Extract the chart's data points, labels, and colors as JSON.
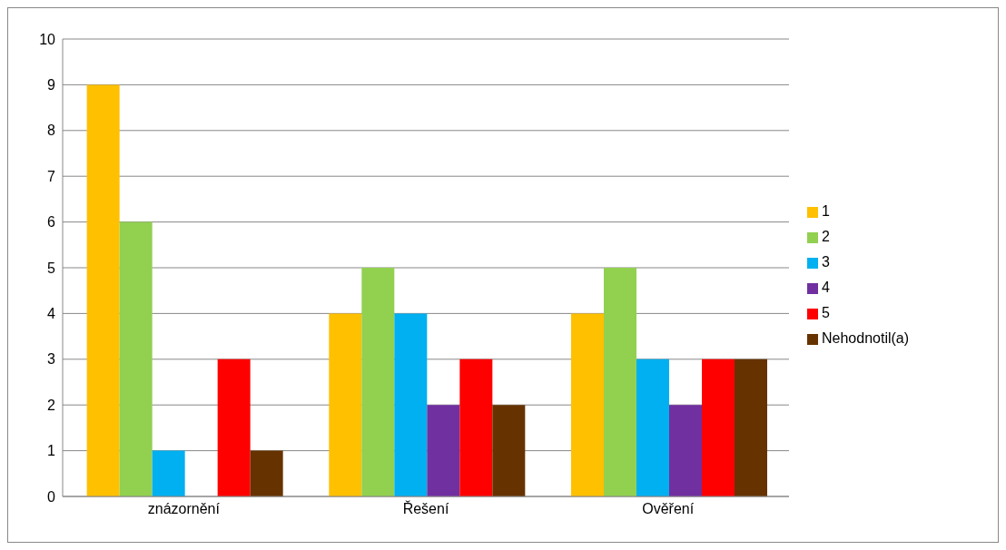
{
  "chart_data": {
    "type": "bar",
    "categories": [
      "znázornění",
      "Řešení",
      "Ověření"
    ],
    "series": [
      {
        "name": "1",
        "color": "#ffc000",
        "values": [
          9,
          4,
          4
        ]
      },
      {
        "name": "2",
        "color": "#92d050",
        "values": [
          6,
          5,
          5
        ]
      },
      {
        "name": "3",
        "color": "#00b0f0",
        "values": [
          1,
          4,
          3
        ]
      },
      {
        "name": "4",
        "color": "#7030a0",
        "values": [
          0,
          2,
          2
        ]
      },
      {
        "name": "5",
        "color": "#ff0000",
        "values": [
          3,
          3,
          3
        ]
      },
      {
        "name": "Nehodnotil(a)",
        "color": "#663300",
        "values": [
          1,
          2,
          3
        ]
      }
    ],
    "ylim": [
      0,
      10
    ],
    "yticks": [
      0,
      1,
      2,
      3,
      4,
      5,
      6,
      7,
      8,
      9,
      10
    ],
    "grid": "y",
    "legend": "right"
  }
}
